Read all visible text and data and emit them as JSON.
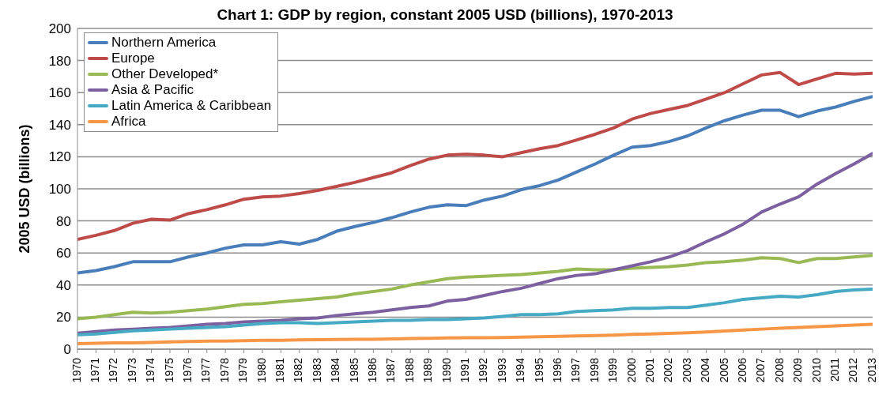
{
  "chart_data": {
    "type": "line",
    "title": "Chart 1: GDP by region, constant 2005 USD (billions), 1970-2013",
    "ylabel": "2005 USD (billions)",
    "categories": [
      "1970",
      "1971",
      "1972",
      "1973",
      "1974",
      "1975",
      "1976",
      "1977",
      "1978",
      "1979",
      "1980",
      "1981",
      "1982",
      "1983",
      "1984",
      "1985",
      "1986",
      "1987",
      "1988",
      "1989",
      "1990",
      "1991",
      "1992",
      "1993",
      "1994",
      "1995",
      "1996",
      "1997",
      "1998",
      "1999",
      "2000",
      "2001",
      "2002",
      "2003",
      "2004",
      "2005",
      "2006",
      "2007",
      "2008",
      "2009",
      "2010",
      "2011",
      "2012",
      "2013"
    ],
    "series": [
      {
        "name": "Northern America",
        "color": "#4a7ebb",
        "values": [
          47.5,
          49,
          51.5,
          54.5,
          54.5,
          54.5,
          57.5,
          60,
          63,
          65,
          65,
          67,
          65.5,
          68.5,
          73.5,
          76.5,
          79,
          82,
          85.5,
          88.5,
          90,
          89.5,
          93,
          95.5,
          99.5,
          102,
          105.5,
          110.5,
          115.5,
          121,
          126,
          127,
          129.5,
          133,
          138,
          142.5,
          146,
          149,
          149,
          145,
          148.5,
          151,
          154.5,
          157.5
        ]
      },
      {
        "name": "Europe",
        "color": "#be4b48",
        "values": [
          68.5,
          71,
          74,
          78.5,
          81,
          80.5,
          84.5,
          87,
          90,
          93.5,
          95,
          95.5,
          97,
          99,
          101.5,
          104,
          107,
          110,
          114.5,
          118.5,
          121,
          121.5,
          121,
          120,
          122.5,
          125,
          127,
          130.5,
          134,
          138,
          143.5,
          147,
          149.5,
          152,
          156,
          160,
          165.5,
          171,
          172.5,
          165,
          168.5,
          172,
          171.5,
          172
        ]
      },
      {
        "name": "Other Developed*",
        "color": "#98b954",
        "values": [
          19,
          20,
          21.5,
          23,
          22.5,
          23,
          24,
          25,
          26.5,
          28,
          28.5,
          29.5,
          30.5,
          31.5,
          32.5,
          34.5,
          36,
          37.5,
          40,
          42,
          44,
          45,
          45.5,
          46,
          46.5,
          47.5,
          48.5,
          50,
          49.5,
          49.5,
          50.5,
          51,
          51.5,
          52.5,
          54,
          54.5,
          55.5,
          57,
          56.5,
          54,
          56.5,
          56.5,
          57.5,
          58.5
        ]
      },
      {
        "name": "Asia & Pacific",
        "color": "#7d60a0",
        "values": [
          10,
          11,
          12,
          12.5,
          13,
          13.5,
          14.5,
          15.5,
          16,
          17,
          17.5,
          18,
          19,
          19.5,
          21,
          22,
          23,
          24.5,
          26,
          27,
          30,
          31,
          33.5,
          36,
          38,
          41,
          44,
          46,
          47,
          49.5,
          52,
          54.5,
          57.5,
          61.5,
          67,
          72,
          78,
          85.5,
          90.5,
          95,
          103,
          109.5,
          115.5,
          122
        ]
      },
      {
        "name": "Latin America & Caribbean",
        "color": "#46aac5",
        "values": [
          9,
          9.5,
          10.5,
          11.5,
          12,
          12.5,
          13,
          13.5,
          14,
          15,
          16,
          16.5,
          16.5,
          16,
          16.5,
          17,
          17.5,
          18,
          18,
          18.5,
          18.5,
          19,
          19.5,
          20.5,
          21.5,
          21.5,
          22,
          23.5,
          24,
          24.5,
          25.5,
          25.5,
          26,
          26,
          27.5,
          29,
          31,
          32,
          33,
          32.5,
          34,
          36,
          37,
          37.5
        ]
      },
      {
        "name": "Africa",
        "color": "#f79646",
        "values": [
          3.5,
          3.7,
          3.9,
          4,
          4.2,
          4.5,
          4.8,
          5,
          5.1,
          5.3,
          5.5,
          5.6,
          5.8,
          5.9,
          6,
          6.1,
          6.2,
          6.4,
          6.6,
          6.8,
          7,
          7.1,
          7.2,
          7.3,
          7.5,
          7.7,
          8,
          8.3,
          8.5,
          8.8,
          9.2,
          9.5,
          9.8,
          10.2,
          10.7,
          11.3,
          11.9,
          12.5,
          13.1,
          13.5,
          14,
          14.5,
          15,
          15.5
        ]
      }
    ],
    "ylim": [
      0,
      200
    ],
    "yticks": [
      0,
      20,
      40,
      60,
      80,
      100,
      120,
      140,
      160,
      180,
      200
    ],
    "grid": "y",
    "legend": "top left",
    "marker": "none",
    "line_style": "solid"
  }
}
